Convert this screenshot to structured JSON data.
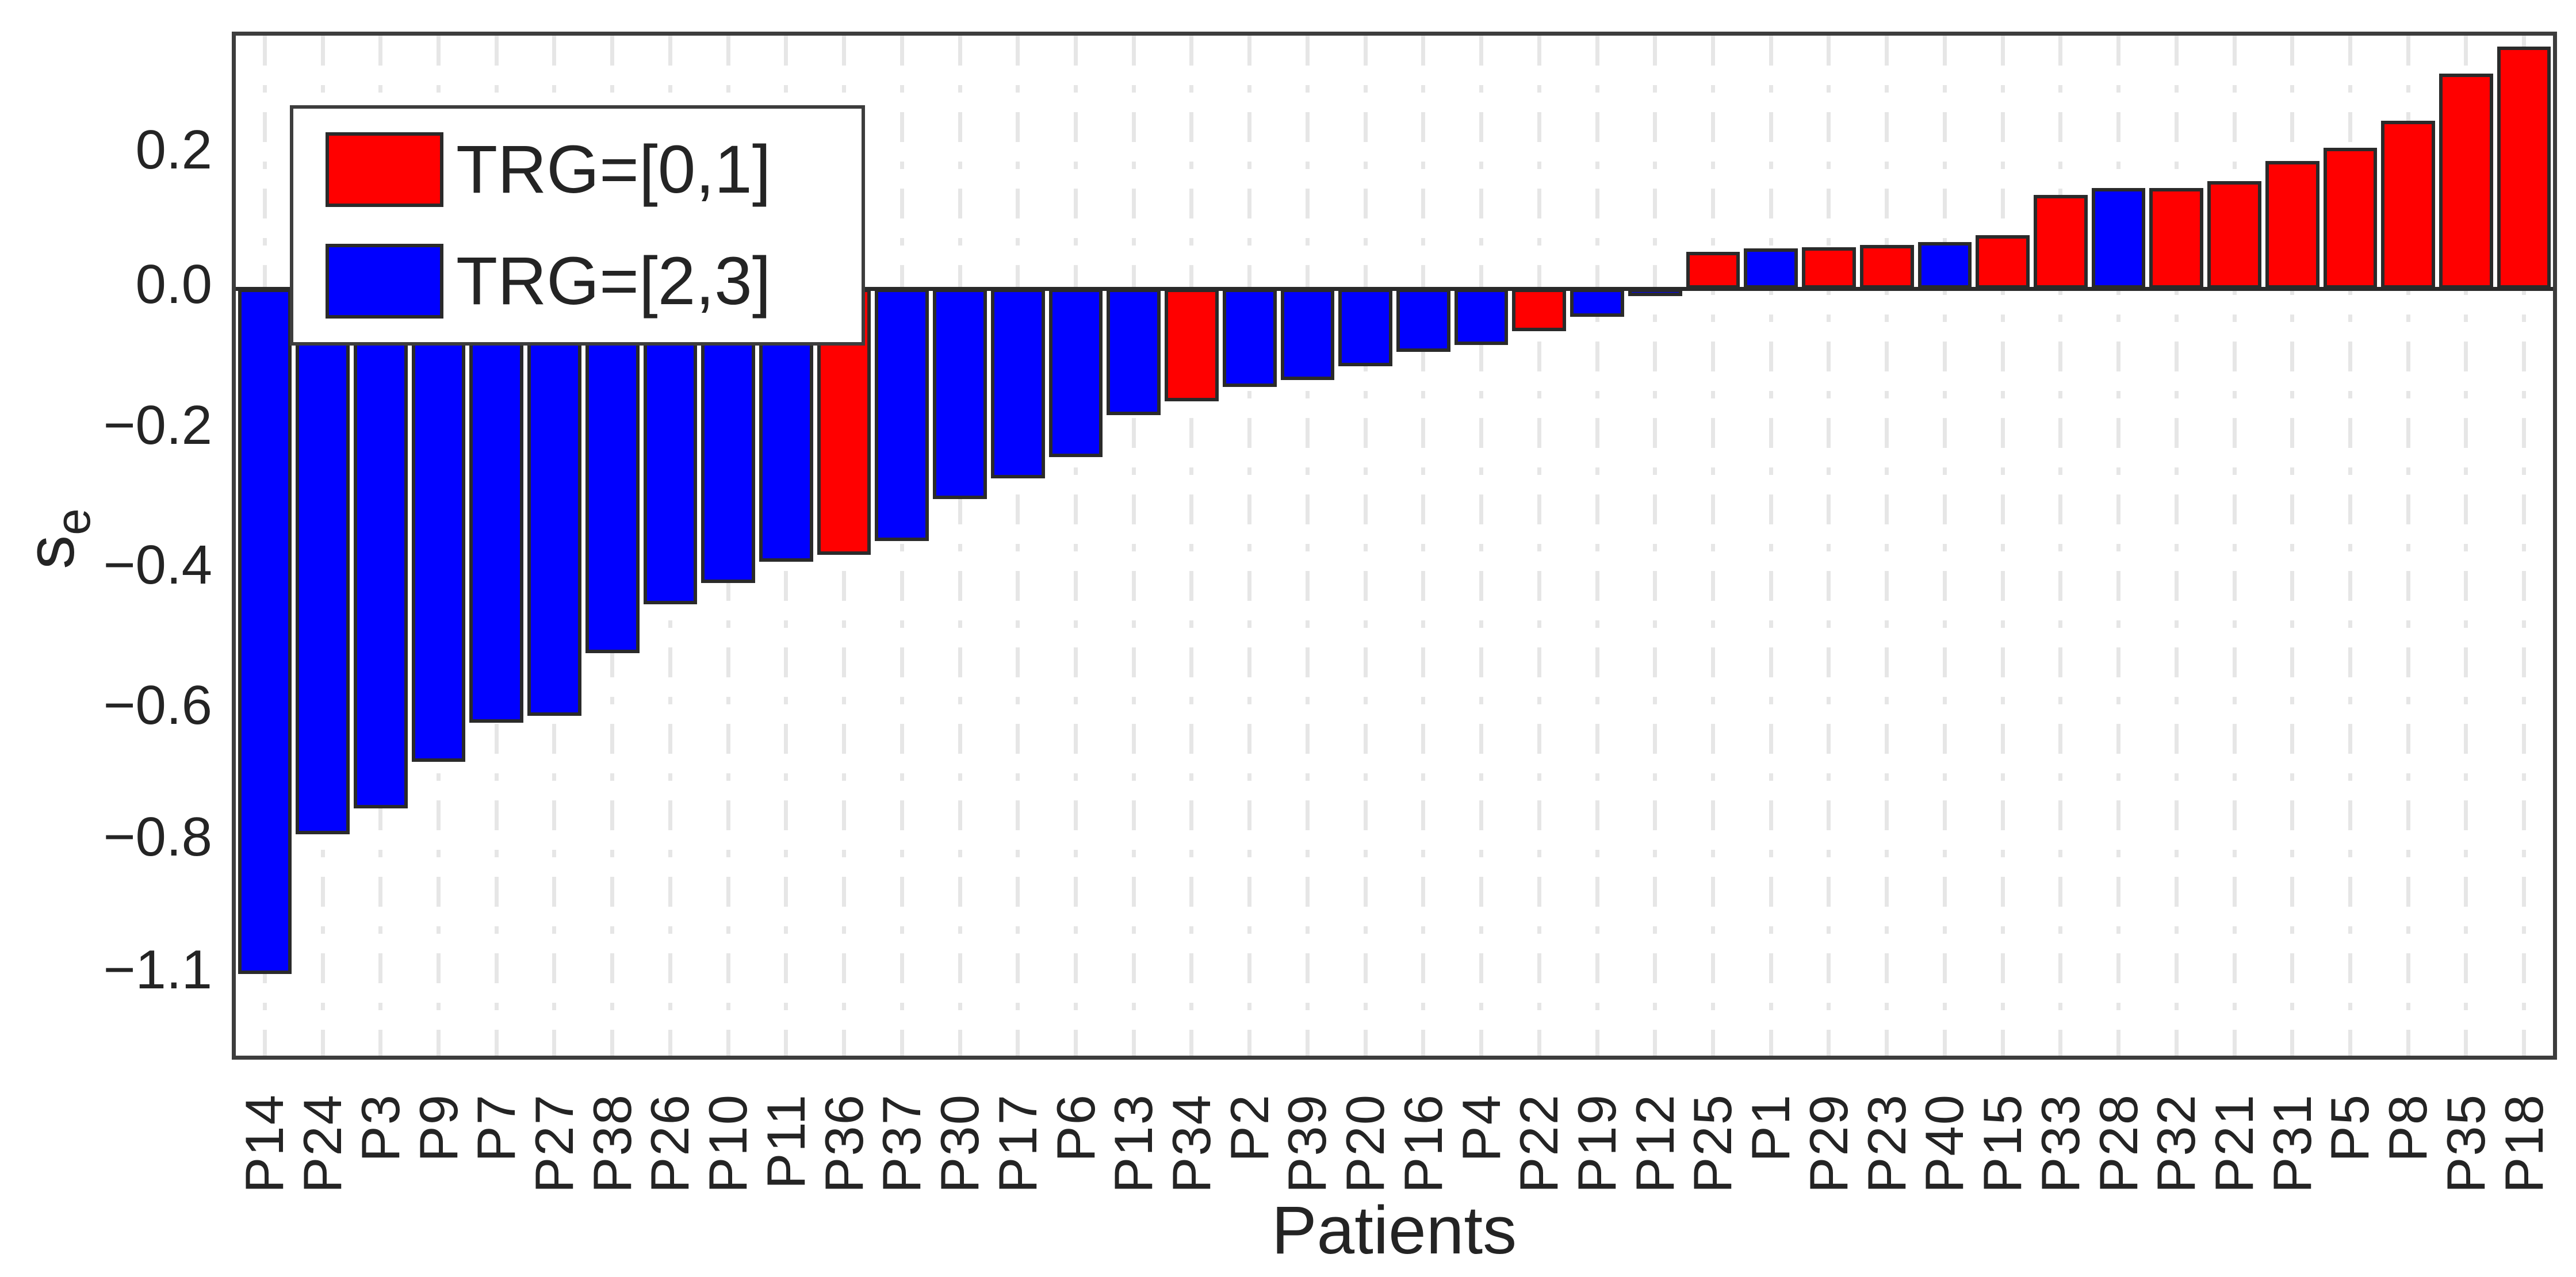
{
  "figure": {
    "background": "#ffffff",
    "description": "Waterfall bar chart of per-patient score s_e, sorted ascending, colored by tumor regression grade group"
  },
  "chart_data": {
    "type": "bar",
    "title": "",
    "xlabel": "Patients",
    "ylabel": "s",
    "ylabel_subscript": "e",
    "ylim": [
      -1.17,
      0.37
    ],
    "grid": "vertical dash-dot gridlines at every bar; no horizontal gridlines",
    "legend_position": "top-left",
    "legend": [
      {
        "label": "TRG=[0,1]",
        "color": "#ff0000"
      },
      {
        "label": "TRG=[2,3]",
        "color": "#0000ff"
      }
    ],
    "yticks": [
      {
        "value": 0.2,
        "label": "0.2"
      },
      {
        "value": 0.0,
        "label": "0.0"
      },
      {
        "value": -0.2,
        "label": "−0.2"
      },
      {
        "value": -0.4,
        "label": "−0.4"
      },
      {
        "value": -0.6,
        "label": "−0.6"
      },
      {
        "value": -0.8,
        "label": "−0.8"
      },
      {
        "value": -1.1,
        "label": "−1.1"
      }
    ],
    "bars": [
      {
        "patient": "P14",
        "value": -1.1,
        "group": "TRG=[2,3]",
        "color": "#0000ff"
      },
      {
        "patient": "P24",
        "value": -0.79,
        "group": "TRG=[2,3]",
        "color": "#0000ff"
      },
      {
        "patient": "P3",
        "value": -0.75,
        "group": "TRG=[2,3]",
        "color": "#0000ff"
      },
      {
        "patient": "P9",
        "value": -0.68,
        "group": "TRG=[2,3]",
        "color": "#0000ff"
      },
      {
        "patient": "P7",
        "value": -0.62,
        "group": "TRG=[2,3]",
        "color": "#0000ff"
      },
      {
        "patient": "P27",
        "value": -0.61,
        "group": "TRG=[2,3]",
        "color": "#0000ff"
      },
      {
        "patient": "P38",
        "value": -0.52,
        "group": "TRG=[2,3]",
        "color": "#0000ff"
      },
      {
        "patient": "P26",
        "value": -0.45,
        "group": "TRG=[2,3]",
        "color": "#0000ff"
      },
      {
        "patient": "P10",
        "value": -0.42,
        "group": "TRG=[2,3]",
        "color": "#0000ff"
      },
      {
        "patient": "P11",
        "value": -0.39,
        "group": "TRG=[2,3]",
        "color": "#0000ff"
      },
      {
        "patient": "P36",
        "value": -0.38,
        "group": "TRG=[0,1]",
        "color": "#ff0000"
      },
      {
        "patient": "P37",
        "value": -0.36,
        "group": "TRG=[2,3]",
        "color": "#0000ff"
      },
      {
        "patient": "P30",
        "value": -0.3,
        "group": "TRG=[2,3]",
        "color": "#0000ff"
      },
      {
        "patient": "P17",
        "value": -0.27,
        "group": "TRG=[2,3]",
        "color": "#0000ff"
      },
      {
        "patient": "P6",
        "value": -0.24,
        "group": "TRG=[2,3]",
        "color": "#0000ff"
      },
      {
        "patient": "P13",
        "value": -0.18,
        "group": "TRG=[2,3]",
        "color": "#0000ff"
      },
      {
        "patient": "P34",
        "value": -0.16,
        "group": "TRG=[0,1]",
        "color": "#ff0000"
      },
      {
        "patient": "P2",
        "value": -0.14,
        "group": "TRG=[2,3]",
        "color": "#0000ff"
      },
      {
        "patient": "P39",
        "value": -0.13,
        "group": "TRG=[2,3]",
        "color": "#0000ff"
      },
      {
        "patient": "P20",
        "value": -0.11,
        "group": "TRG=[2,3]",
        "color": "#0000ff"
      },
      {
        "patient": "P16",
        "value": -0.09,
        "group": "TRG=[2,3]",
        "color": "#0000ff"
      },
      {
        "patient": "P4",
        "value": -0.08,
        "group": "TRG=[2,3]",
        "color": "#0000ff"
      },
      {
        "patient": "P22",
        "value": -0.06,
        "group": "TRG=[0,1]",
        "color": "#ff0000"
      },
      {
        "patient": "P19",
        "value": -0.04,
        "group": "TRG=[2,3]",
        "color": "#0000ff"
      },
      {
        "patient": "P12",
        "value": -0.01,
        "group": "TRG=[2,3]",
        "color": "#0000ff"
      },
      {
        "patient": "P25",
        "value": 0.055,
        "group": "TRG=[0,1]",
        "color": "#ff0000"
      },
      {
        "patient": "P1",
        "value": 0.06,
        "group": "TRG=[2,3]",
        "color": "#0000ff"
      },
      {
        "patient": "P29",
        "value": 0.062,
        "group": "TRG=[0,1]",
        "color": "#ff0000"
      },
      {
        "patient": "P23",
        "value": 0.065,
        "group": "TRG=[0,1]",
        "color": "#ff0000"
      },
      {
        "patient": "P40",
        "value": 0.07,
        "group": "TRG=[2,3]",
        "color": "#0000ff"
      },
      {
        "patient": "P15",
        "value": 0.08,
        "group": "TRG=[0,1]",
        "color": "#ff0000"
      },
      {
        "patient": "P33",
        "value": 0.14,
        "group": "TRG=[0,1]",
        "color": "#ff0000"
      },
      {
        "patient": "P28",
        "value": 0.15,
        "group": "TRG=[2,3]",
        "color": "#0000ff"
      },
      {
        "patient": "P32",
        "value": 0.15,
        "group": "TRG=[0,1]",
        "color": "#ff0000"
      },
      {
        "patient": "P21",
        "value": 0.16,
        "group": "TRG=[0,1]",
        "color": "#ff0000"
      },
      {
        "patient": "P31",
        "value": 0.19,
        "group": "TRG=[0,1]",
        "color": "#ff0000"
      },
      {
        "patient": "P5",
        "value": 0.21,
        "group": "TRG=[0,1]",
        "color": "#ff0000"
      },
      {
        "patient": "P8",
        "value": 0.25,
        "group": "TRG=[0,1]",
        "color": "#ff0000"
      },
      {
        "patient": "P35",
        "value": 0.32,
        "group": "TRG=[0,1]",
        "color": "#ff0000"
      },
      {
        "patient": "P18",
        "value": 0.36,
        "group": "TRG=[0,1]",
        "color": "#ff0000"
      }
    ]
  },
  "colors": {
    "red": "#ff0000",
    "blue": "#0000ff",
    "bar_outline": "#2a2a2a",
    "axis_border": "#3d3d3d",
    "gridline": "#e6e6e6",
    "text": "#242424"
  }
}
